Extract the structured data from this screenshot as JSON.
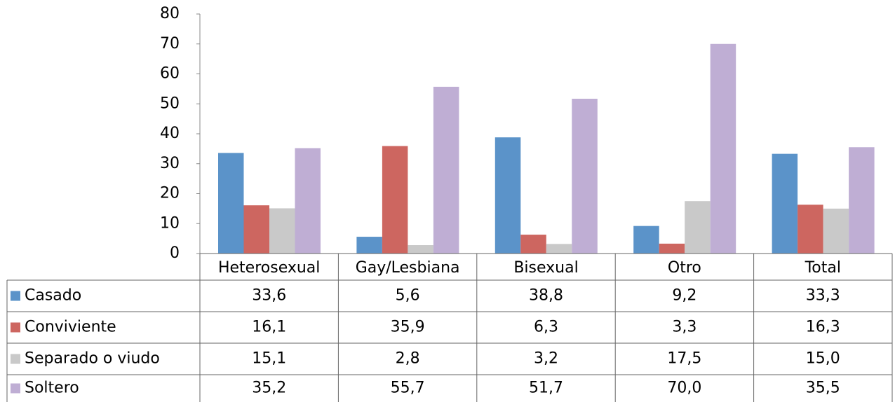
{
  "chart_data": {
    "type": "bar",
    "categories": [
      "Heterosexual",
      "Gay/Lesbiana",
      "Bisexual",
      "Otro",
      "Total"
    ],
    "series": [
      {
        "name": "Casado",
        "color": "#5b93c9",
        "values": [
          33.6,
          5.6,
          38.8,
          9.2,
          33.3
        ],
        "value_labels": [
          "33,6",
          "5,6",
          "38,8",
          "9,2",
          "33,3"
        ]
      },
      {
        "name": "Conviviente",
        "color": "#cd6660",
        "values": [
          16.1,
          35.9,
          6.3,
          3.3,
          16.3
        ],
        "value_labels": [
          "16,1",
          "35,9",
          "6,3",
          "3,3",
          "16,3"
        ]
      },
      {
        "name": "Separado o viudo",
        "color": "#c9c9c9",
        "values": [
          15.1,
          2.8,
          3.2,
          17.5,
          15.0
        ],
        "value_labels": [
          "15,1",
          "2,8",
          "3,2",
          "17,5",
          "15,0"
        ]
      },
      {
        "name": "Soltero",
        "color": "#bfaed4",
        "values": [
          35.2,
          55.7,
          51.7,
          70.0,
          35.5
        ],
        "value_labels": [
          "35,2",
          "55,7",
          "51,7",
          "70,0",
          "35,5"
        ]
      }
    ],
    "ylim": [
      0,
      80
    ],
    "yticks": [
      0,
      10,
      20,
      30,
      40,
      50,
      60,
      70,
      80
    ],
    "grid": false
  }
}
